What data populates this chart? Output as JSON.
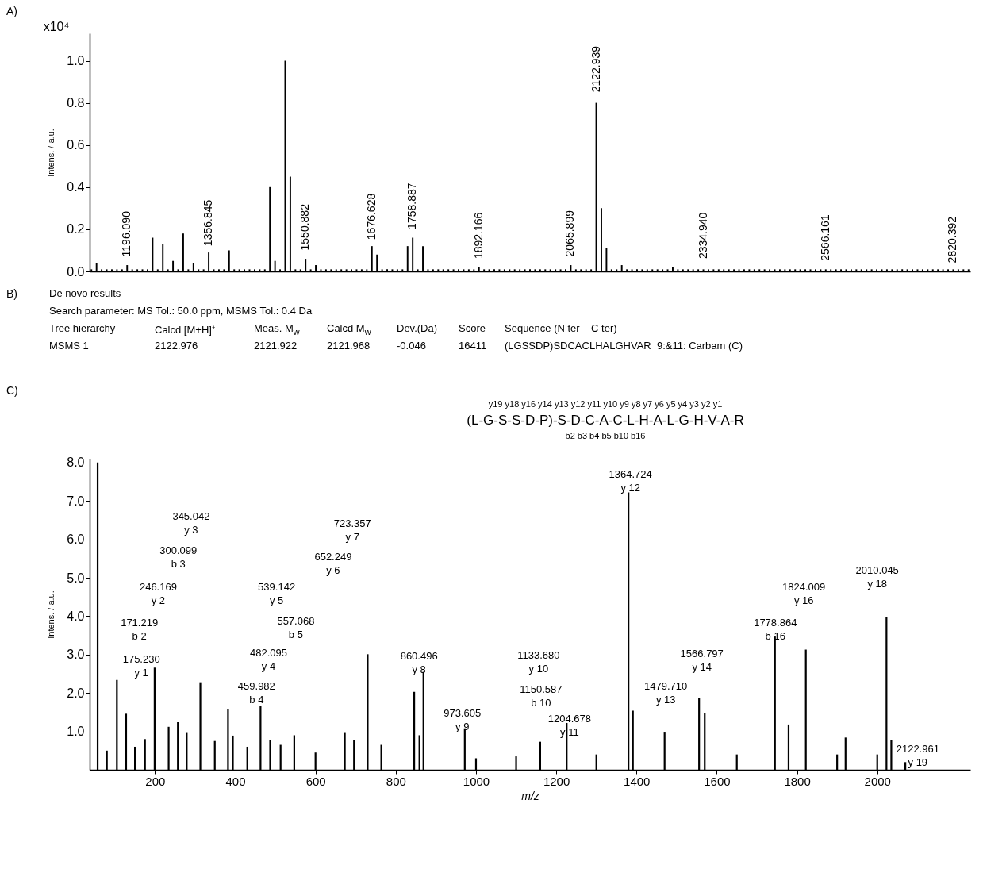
{
  "chart_data": [
    {
      "type": "bar",
      "title": "A)",
      "ylabel": "Intens. / a.u.",
      "color": "#000000",
      "tick_labels": "y",
      "categories": [
        null,
        null,
        null,
        null,
        null,
        null,
        null,
        null,
        null,
        null,
        null,
        null,
        null,
        null,
        null,
        null,
        null,
        null,
        null,
        null,
        null,
        null,
        null,
        null,
        null,
        null,
        null,
        null,
        null,
        null,
        null,
        null,
        null,
        null,
        null,
        null,
        null,
        null,
        null,
        null,
        null,
        null,
        null,
        null,
        null,
        null,
        null,
        null,
        null,
        null,
        null,
        null,
        null,
        null,
        null,
        null,
        null,
        null,
        null,
        null,
        null,
        null,
        null,
        null,
        null,
        null,
        null,
        null,
        null,
        null,
        null,
        null,
        null,
        null,
        null,
        null,
        null,
        null,
        null,
        null,
        null,
        null,
        null,
        null,
        null,
        null,
        null,
        null,
        null,
        null,
        null,
        null,
        null,
        null,
        null,
        null,
        null,
        null,
        null,
        null,
        null,
        null,
        null,
        null,
        null,
        null,
        null,
        null,
        null,
        null,
        null,
        null,
        null,
        null,
        null,
        null,
        null,
        null,
        null,
        null,
        null,
        null,
        null,
        null,
        null,
        null,
        null,
        null,
        null,
        null,
        null,
        null,
        null,
        null,
        null,
        null,
        null,
        null,
        null,
        null,
        null,
        null,
        null,
        null,
        null,
        null,
        null,
        null,
        null,
        null,
        null,
        null,
        null,
        null,
        null,
        null,
        null,
        null,
        null,
        null,
        null,
        null,
        null,
        null,
        null,
        null,
        null,
        null,
        null,
        null,
        null,
        null,
        null
      ],
      "values": [
        0.01,
        0.04,
        0.01,
        0.01,
        0.01,
        0.01,
        0.01,
        0.03,
        0.01,
        0.01,
        0.01,
        0.01,
        0.16,
        0.01,
        0.13,
        0.01,
        0.05,
        0.01,
        0.18,
        0.01,
        0.04,
        0.01,
        0.01,
        0.09,
        0.01,
        0.01,
        0.01,
        0.1,
        0.01,
        0.01,
        0.01,
        0.01,
        0.01,
        0.01,
        0.01,
        0.4,
        0.05,
        0.01,
        1.0,
        0.45,
        0.01,
        0.01,
        0.06,
        0.01,
        0.03,
        0.01,
        0.01,
        0.01,
        0.01,
        0.01,
        0.01,
        0.01,
        0.01,
        0.01,
        0.01,
        0.12,
        0.08,
        0.01,
        0.01,
        0.01,
        0.01,
        0.01,
        0.12,
        0.16,
        0.01,
        0.12,
        0.01,
        0.01,
        0.01,
        0.01,
        0.01,
        0.01,
        0.01,
        0.01,
        0.01,
        0.01,
        0.02,
        0.01,
        0.01,
        0.01,
        0.01,
        0.01,
        0.01,
        0.01,
        0.01,
        0.01,
        0.01,
        0.01,
        0.01,
        0.01,
        0.01,
        0.01,
        0.01,
        0.01,
        0.03,
        0.01,
        0.01,
        0.01,
        0.01,
        0.8,
        0.3,
        0.11,
        0.01,
        0.01,
        0.03,
        0.01,
        0.01,
        0.01,
        0.01,
        0.01,
        0.01,
        0.01,
        0.01,
        0.01,
        0.02,
        0.01,
        0.01,
        0.01,
        0.01,
        0.01,
        0.01,
        0.01,
        0.01,
        0.01,
        0.01,
        0.01,
        0.01,
        0.01,
        0.01,
        0.01,
        0.01,
        0.01,
        0.01,
        0.01,
        0.01,
        0.01,
        0.01,
        0.01,
        0.01,
        0.01,
        0.01,
        0.01,
        0.01,
        0.01,
        0.01,
        0.01,
        0.01,
        0.01,
        0.01,
        0.01,
        0.01,
        0.01,
        0.01,
        0.01,
        0.01,
        0.01,
        0.01,
        0.01,
        0.01,
        0.01,
        0.01,
        0.01,
        0.01,
        0.01,
        0.01,
        0.01,
        0.01,
        0.01,
        0.01,
        0.01,
        0.01,
        0.01,
        0.01
      ],
      "ylim": [
        0,
        1.13
      ],
      "yticks": [
        {
          "value": 0,
          "label": "0.0"
        },
        {
          "value": 0.2,
          "label": "0.2"
        },
        {
          "value": 0.4,
          "label": "0.4"
        },
        {
          "value": 0.6,
          "label": "0.6"
        },
        {
          "value": 0.8,
          "label": "0.8"
        },
        {
          "value": 1,
          "label": "1.0"
        }
      ],
      "annotations": [
        "x10⁴",
        "1196.090",
        "1356.845",
        "1550.882",
        "1676.628",
        "1758.887",
        "1892.166",
        "2065.899",
        "2122.939",
        "2334.940",
        "2566.161",
        "2820.392"
      ]
    },
    {
      "type": "other",
      "title": "B)",
      "subtitle": "De novo results",
      "annotations": [
        "Search parameter: MS Tol.: 50.0 ppm, MSMS Tol.: 0.4 Da",
        "Tree hierarchy",
        "Calcd [M+H]⁺",
        "Meas. M$_{w}$",
        "Calcd M$_{w}$",
        "Dev.(Da)",
        "Score",
        "Sequence (N ter – C ter)",
        "MSMS 1",
        "2122.976",
        "2121.922",
        "2121.968",
        "-0.046",
        "16411",
        "(LGSSDP)SDCACLHALGHVAR  9:&11: Carbam (C)"
      ]
    },
    {
      "type": "bar",
      "title": "C)",
      "ylabel": "Intens. / a.u.",
      "xlabel": "m/z",
      "color": "#000000",
      "x": [
        57,
        80,
        105,
        128,
        150,
        175,
        199,
        234,
        257,
        279,
        313,
        349,
        382,
        394,
        430,
        463,
        487,
        513,
        547,
        600,
        673,
        696,
        730,
        764,
        846,
        859,
        869,
        972,
        1000,
        1100,
        1160,
        1226,
        1300,
        1380,
        1391,
        1470,
        1556,
        1570,
        1650,
        1745,
        1779,
        1822,
        1900,
        1921,
        2000,
        2023,
        2035,
        2070
      ],
      "values": [
        8.0,
        0.5,
        2.34,
        1.46,
        0.6,
        0.8,
        2.66,
        1.12,
        1.24,
        0.96,
        2.28,
        0.75,
        1.57,
        0.89,
        0.6,
        1.67,
        0.78,
        0.65,
        0.9,
        0.45,
        0.96,
        0.77,
        3.01,
        0.65,
        2.03,
        0.9,
        2.55,
        1.08,
        0.3,
        0.35,
        0.73,
        1.22,
        0.4,
        7.22,
        1.54,
        0.97,
        1.86,
        1.47,
        0.4,
        3.47,
        1.18,
        3.13,
        0.4,
        0.84,
        0.4,
        3.97,
        0.78,
        0.2
      ],
      "xlim": [
        47,
        2222
      ],
      "ylim": [
        0,
        8.1
      ],
      "xticks": [
        200,
        400,
        600,
        800,
        1000,
        1200,
        1400,
        1600,
        1800,
        2000
      ],
      "yticks": [
        {
          "value": 1,
          "label": "1.0"
        },
        {
          "value": 2,
          "label": "2.0"
        },
        {
          "value": 3,
          "label": "3.0"
        },
        {
          "value": 4,
          "label": "4.0"
        },
        {
          "value": 5,
          "label": "5.0"
        },
        {
          "value": 6,
          "label": "6.0"
        },
        {
          "value": 7,
          "label": "7.0"
        },
        {
          "value": 8,
          "label": "8.0"
        }
      ],
      "annotations": [
        "y19 y18 y16 y14 y13 y12 y11 y10 y9 y8 y7 y6 y5 y4 y3 y2 y1",
        "(L-G-S-S-D-P)-S-D-C-A-C-L-H-A-L-G-H-V-A-R",
        "b2 b3 b4 b5 b10 b16",
        "345.042\ny 3",
        "300.099\nb 3",
        "246.169\ny 2",
        "171.219\nb 2",
        "175.230\ny 1",
        "723.357\ny 7",
        "652.249\ny 6",
        "539.142\ny 5",
        "557.068\nb 5",
        "482.095\ny 4",
        "459.982\nb 4",
        "860.496\ny 8",
        "973.605\ny 9",
        "1133.680\ny 10",
        "1150.587\nb 10",
        "1204.678\ny 11",
        "1364.724\ny 12",
        "1479.710\ny 13",
        "1566.797\ny 14",
        "1778.864\nb 16",
        "1824.009\ny 16",
        "2010.045\ny 18",
        "2122.961\ny 19"
      ]
    }
  ]
}
